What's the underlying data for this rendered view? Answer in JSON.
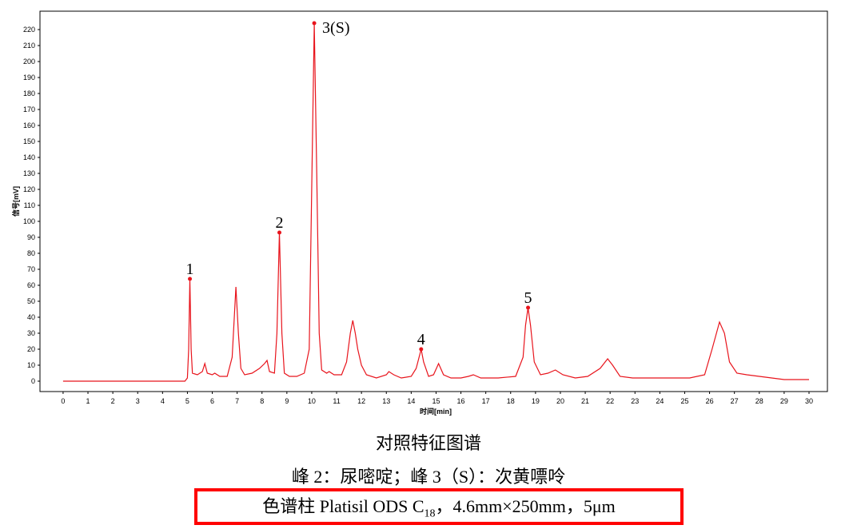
{
  "chart_data": {
    "type": "line",
    "y_label": "信号[mV]",
    "x_label": "时间[min]",
    "color": "#e8141c",
    "x": [
      0,
      4.9,
      5.0,
      5.05,
      5.1,
      5.15,
      5.2,
      5.4,
      5.6,
      5.7,
      5.8,
      6.0,
      6.1,
      6.3,
      6.6,
      6.8,
      6.85,
      6.95,
      7.05,
      7.15,
      7.3,
      7.6,
      7.9,
      8.1,
      8.2,
      8.3,
      8.5,
      8.6,
      8.7,
      8.8,
      8.9,
      9.1,
      9.4,
      9.7,
      9.9,
      10.0,
      10.1,
      10.2,
      10.3,
      10.4,
      10.6,
      10.7,
      10.9,
      11.2,
      11.4,
      11.55,
      11.65,
      11.75,
      11.85,
      12.0,
      12.2,
      12.6,
      13.0,
      13.1,
      13.3,
      13.6,
      14.0,
      14.2,
      14.4,
      14.5,
      14.7,
      14.9,
      15.1,
      15.3,
      15.6,
      16.0,
      16.3,
      16.5,
      16.8,
      17.5,
      18.2,
      18.5,
      18.6,
      18.7,
      18.8,
      18.95,
      19.2,
      19.5,
      19.8,
      20.1,
      20.6,
      21.1,
      21.6,
      21.9,
      22.1,
      22.4,
      22.9,
      23.9,
      24.4,
      25.2,
      25.8,
      26.1,
      26.4,
      26.6,
      26.8,
      27.1,
      27.5,
      28.0,
      28.5,
      29.0,
      30.0
    ],
    "values": [
      0,
      0,
      2,
      20,
      64,
      20,
      5,
      4,
      6,
      11,
      5,
      4,
      5,
      3,
      3,
      15,
      30,
      59,
      30,
      8,
      4,
      5,
      8,
      11,
      13,
      6,
      5,
      30,
      93,
      30,
      5,
      3,
      3,
      5,
      20,
      120,
      224,
      130,
      30,
      7,
      5,
      6,
      4,
      4,
      12,
      30,
      38,
      30,
      20,
      10,
      4,
      2,
      4,
      6,
      4,
      2,
      3,
      8,
      20,
      12,
      3,
      4,
      11,
      4,
      2,
      2,
      3,
      4,
      2,
      2,
      3,
      15,
      35,
      46,
      35,
      12,
      4,
      5,
      7,
      4,
      2,
      3,
      8,
      14,
      10,
      3,
      2,
      2,
      2,
      2,
      4,
      20,
      37,
      30,
      12,
      5,
      4,
      3,
      2,
      1,
      1
    ],
    "peaks": {
      "labels": [
        "1",
        "2",
        "3(S)",
        "4",
        "5"
      ],
      "x": [
        5.1,
        8.7,
        10.1,
        14.4,
        18.7
      ],
      "values": [
        64,
        93,
        224,
        20,
        46
      ]
    },
    "xlim": [
      -0.93,
      30.74
    ],
    "ylim": [
      -6.5,
      231.5
    ],
    "xticks": [
      0,
      1,
      2,
      3,
      4,
      5,
      6,
      7,
      8,
      9,
      10,
      11,
      12,
      13,
      14,
      15,
      16,
      17,
      18,
      19,
      20,
      21,
      22,
      23,
      24,
      25,
      26,
      27,
      28,
      29,
      30
    ],
    "yticks": [
      0,
      10,
      20,
      30,
      40,
      50,
      60,
      70,
      80,
      90,
      100,
      110,
      120,
      130,
      140,
      150,
      160,
      170,
      180,
      190,
      200,
      210,
      220
    ]
  },
  "caption": {
    "title": "对照特征图谱",
    "note": "峰 2：尿嘧啶；峰 3（S）：次黄嘌呤",
    "column": [
      "色谱柱  Platisil ODS C",
      "18",
      "，4.6mm×250mm，5μm"
    ]
  }
}
